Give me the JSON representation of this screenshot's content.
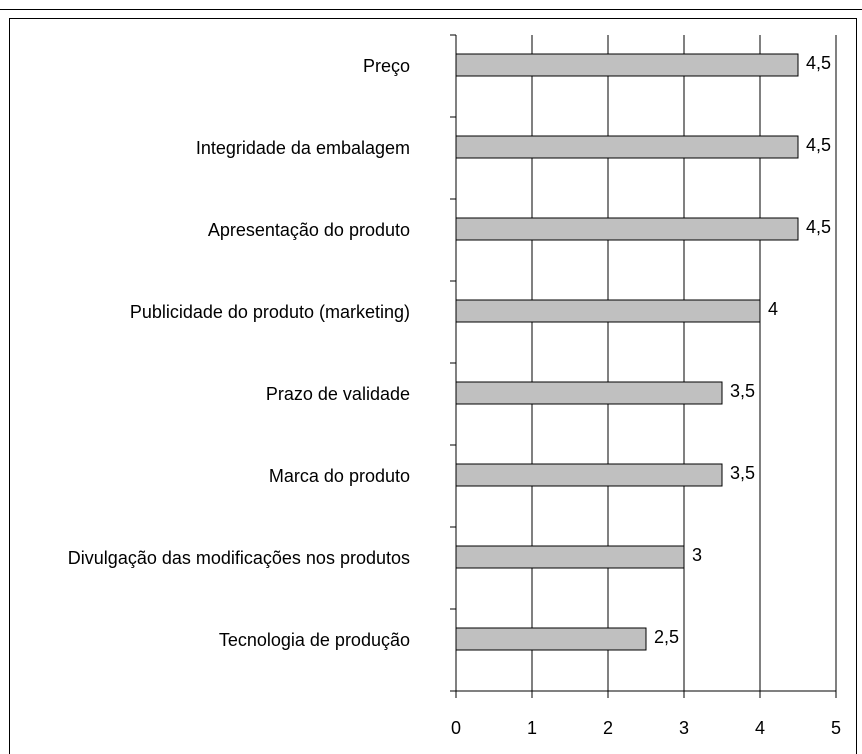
{
  "chart_data": {
    "type": "barh",
    "categories": [
      "Preço",
      "Integridade da embalagem",
      "Apresentação do produto",
      "Publicidade do produto (marketing)",
      "Prazo de validade",
      "Marca do produto",
      "Divulgação das modificações nos produtos",
      "Tecnologia de produção"
    ],
    "values": [
      4.5,
      4.5,
      4.5,
      4,
      3.5,
      3.5,
      3,
      2.5
    ],
    "value_labels": [
      "4,5",
      "4,5",
      "4,5",
      "4",
      "3,5",
      "3,5",
      "3",
      "2,5"
    ],
    "color": "#c0c0c0",
    "xlim": [
      0,
      5
    ],
    "xticks": [
      0,
      1,
      2,
      3,
      4,
      5
    ],
    "grid": true
  }
}
